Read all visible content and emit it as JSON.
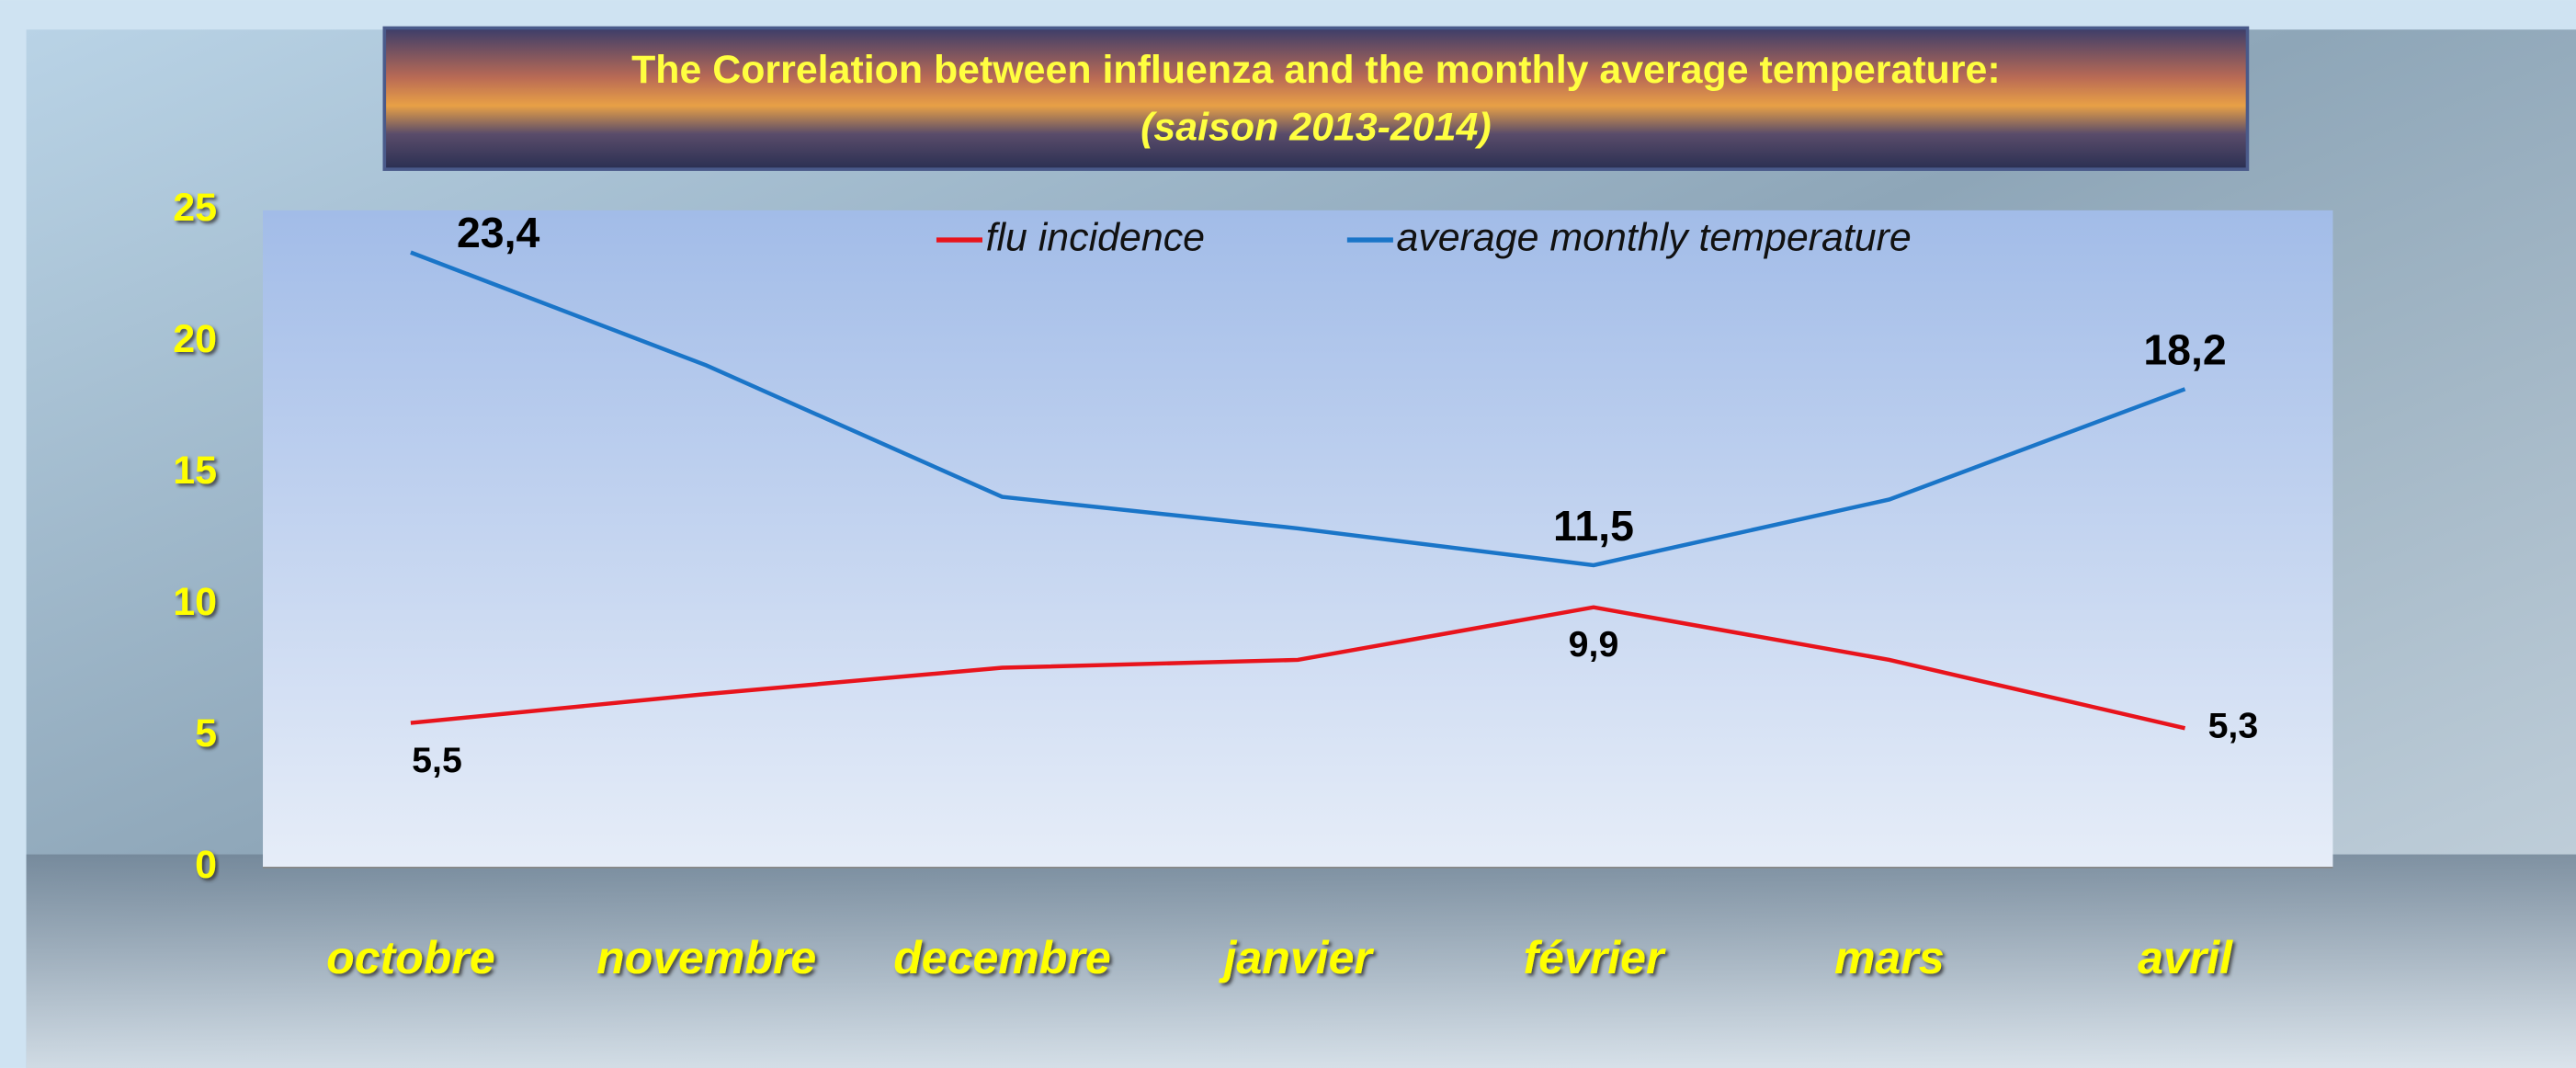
{
  "chart_data": {
    "type": "line",
    "title": "The Correlation between influenza and the monthly average temperature:",
    "subtitle": "(saison 2013-2014)",
    "categories": [
      "octobre",
      "novembre",
      "decembre",
      "janvier",
      "février",
      "mars",
      "avril"
    ],
    "series": [
      {
        "name": "flu incidence",
        "color": "#e8141c",
        "values": [
          5.5,
          6.6,
          7.6,
          7.9,
          9.9,
          7.9,
          5.3
        ],
        "value_labels": [
          "5,5",
          null,
          null,
          null,
          "9,9",
          null,
          "5,3"
        ]
      },
      {
        "name": "average monthly temperature",
        "color": "#1a75c8",
        "values": [
          23.4,
          19.1,
          14.1,
          12.9,
          11.5,
          14.0,
          18.2
        ],
        "value_labels": [
          "23,4",
          null,
          null,
          null,
          "11,5",
          null,
          "18,2"
        ]
      }
    ],
    "ylim": [
      0,
      25
    ],
    "yticks": [
      0,
      5,
      10,
      15,
      20,
      25
    ],
    "grid": false,
    "legend": "top"
  }
}
